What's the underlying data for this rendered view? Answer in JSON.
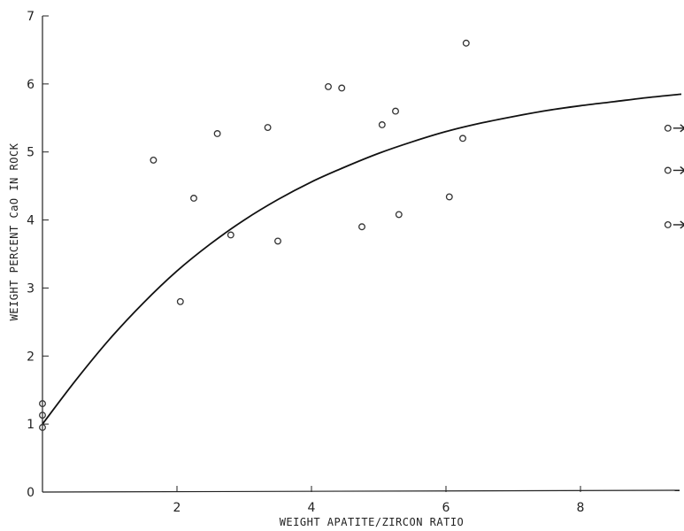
{
  "chart_data": {
    "type": "scatter",
    "title": "",
    "xlabel": "WEIGHT APATITE/ZIRCON RATIO",
    "ylabel": "WEIGHT PERCENT CaO IN ROCK",
    "xlim": [
      0,
      9.5
    ],
    "ylim": [
      0,
      7
    ],
    "x_ticks": [
      2,
      4,
      6,
      8
    ],
    "y_ticks": [
      0,
      1,
      2,
      3,
      4,
      5,
      6,
      7
    ],
    "grid": false,
    "legend": "none",
    "series": [
      {
        "type": "scatter",
        "marker": "open-circle",
        "points": [
          {
            "x": 0,
            "y": 0.95
          },
          {
            "x": 0,
            "y": 1.13
          },
          {
            "x": 0,
            "y": 1.3
          },
          {
            "x": 1.65,
            "y": 4.88
          },
          {
            "x": 2.05,
            "y": 2.8
          },
          {
            "x": 2.25,
            "y": 4.32
          },
          {
            "x": 2.6,
            "y": 5.27
          },
          {
            "x": 2.8,
            "y": 3.78
          },
          {
            "x": 3.35,
            "y": 5.36
          },
          {
            "x": 3.5,
            "y": 3.69
          },
          {
            "x": 4.25,
            "y": 5.96
          },
          {
            "x": 4.45,
            "y": 5.94
          },
          {
            "x": 4.75,
            "y": 3.9
          },
          {
            "x": 5.05,
            "y": 5.4
          },
          {
            "x": 5.25,
            "y": 5.6
          },
          {
            "x": 5.3,
            "y": 4.08
          },
          {
            "x": 6.05,
            "y": 4.34
          },
          {
            "x": 6.25,
            "y": 5.2
          },
          {
            "x": 6.3,
            "y": 6.6
          }
        ]
      },
      {
        "type": "scatter",
        "marker": "open-circle-arrow-right",
        "note_offscale": true,
        "points": [
          {
            "x": 9.3,
            "y": 5.35
          },
          {
            "x": 9.3,
            "y": 4.73
          },
          {
            "x": 9.3,
            "y": 3.93
          }
        ]
      },
      {
        "type": "line",
        "style": "smooth-fit-curve",
        "points": [
          {
            "x": 0,
            "y": 1.0
          },
          {
            "x": 0.5,
            "y": 1.65
          },
          {
            "x": 1,
            "y": 2.25
          },
          {
            "x": 1.5,
            "y": 2.78
          },
          {
            "x": 2,
            "y": 3.25
          },
          {
            "x": 2.5,
            "y": 3.65
          },
          {
            "x": 3,
            "y": 4.0
          },
          {
            "x": 3.5,
            "y": 4.3
          },
          {
            "x": 4,
            "y": 4.56
          },
          {
            "x": 4.5,
            "y": 4.78
          },
          {
            "x": 5,
            "y": 4.98
          },
          {
            "x": 5.5,
            "y": 5.15
          },
          {
            "x": 6,
            "y": 5.3
          },
          {
            "x": 6.5,
            "y": 5.42
          },
          {
            "x": 7,
            "y": 5.52
          },
          {
            "x": 7.5,
            "y": 5.61
          },
          {
            "x": 8,
            "y": 5.68
          },
          {
            "x": 8.5,
            "y": 5.74
          },
          {
            "x": 9,
            "y": 5.8
          },
          {
            "x": 9.5,
            "y": 5.85
          }
        ]
      }
    ]
  }
}
